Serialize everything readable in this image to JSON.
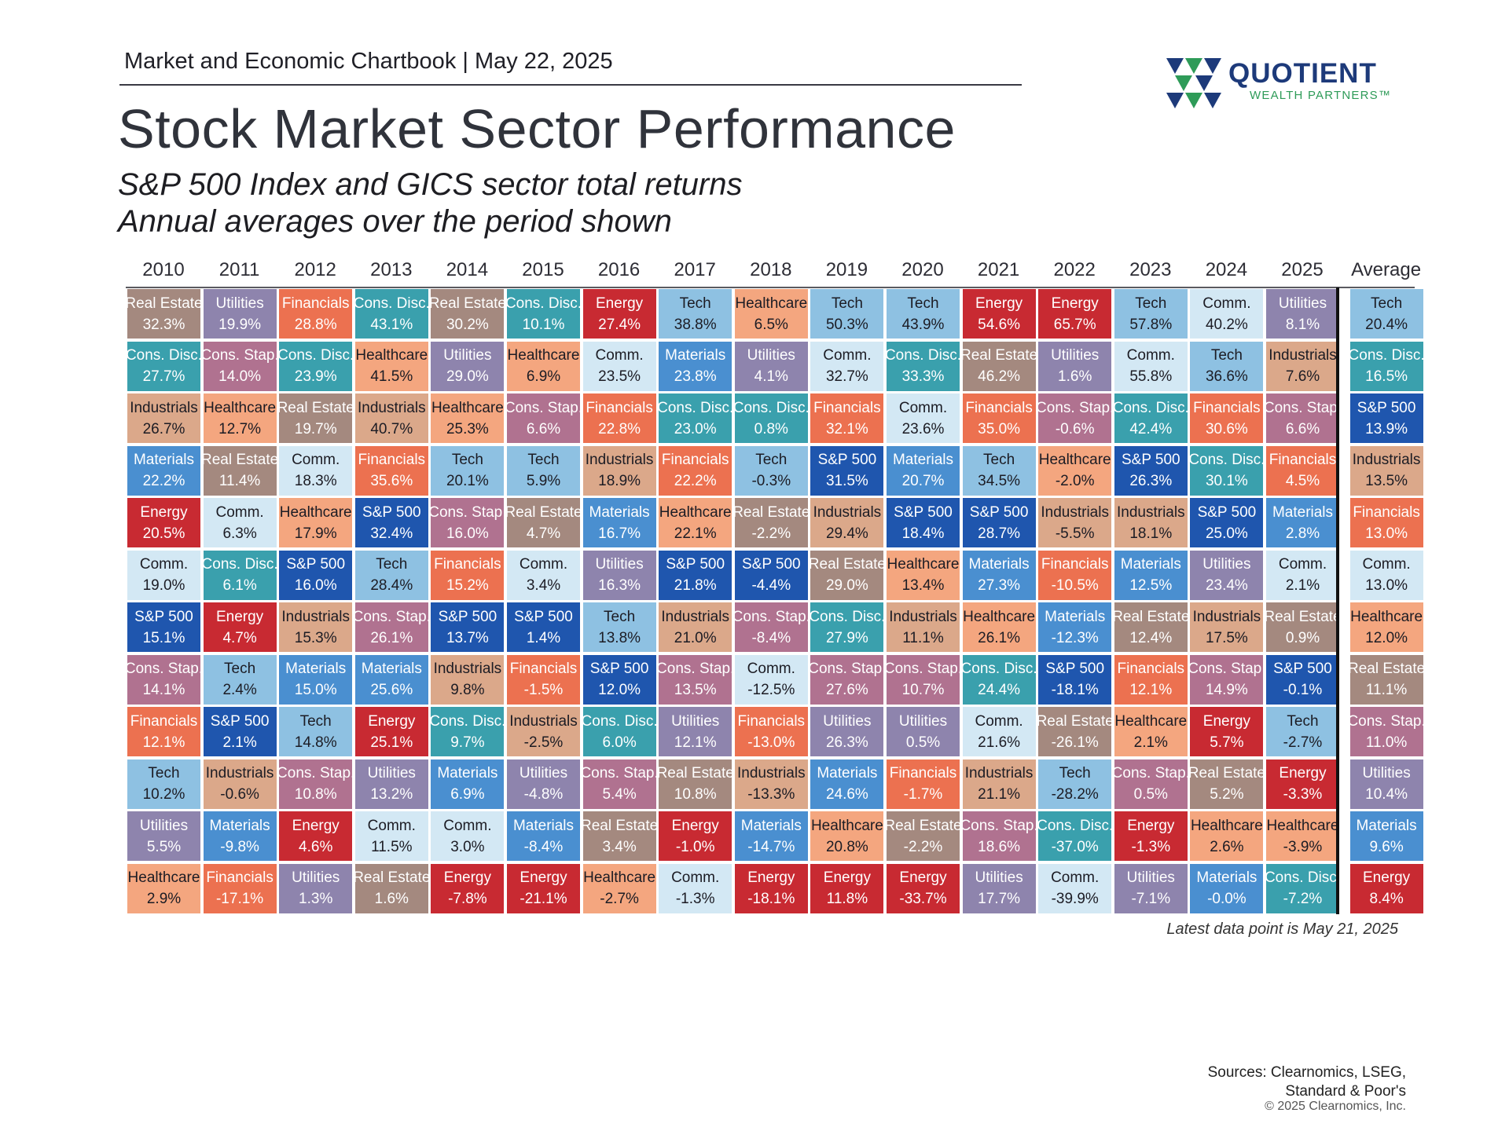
{
  "header": {
    "chartbook_label": "Market and Economic Chartbook | May 22, 2025",
    "title": "Stock Market Sector Performance",
    "subtitle_line1": "S&P 500 Index and GICS sector total returns",
    "subtitle_line2": "Annual averages over the period shown"
  },
  "logo": {
    "name": "QUOTIENT",
    "tagline": "WEALTH PARTNERS™",
    "colors": [
      "#1d3a7a",
      "#2e9b58"
    ]
  },
  "footer": {
    "note": "Latest data point is May 21, 2025",
    "sources_line1": "Sources: Clearnomics, LSEG,",
    "sources_line2": "Standard & Poor's",
    "copyright": "© 2025 Clearnomics, Inc."
  },
  "sector_colors": {
    "Real Estate": {
      "bg": "#a4897f",
      "fg": "#ffffff"
    },
    "Utilities": {
      "bg": "#8e84ad",
      "fg": "#ffffff"
    },
    "Financials": {
      "bg": "#ec7150",
      "fg": "#ffffff"
    },
    "Cons. Disc.": {
      "bg": "#3aa0ad",
      "fg": "#ffffff"
    },
    "Energy": {
      "bg": "#c82a32",
      "fg": "#ffffff"
    },
    "Tech": {
      "bg": "#8ec1e2",
      "fg": "#1c1c24"
    },
    "Healthcare": {
      "bg": "#f4a67f",
      "fg": "#1c1c24"
    },
    "Comm.": {
      "bg": "#d3e8f4",
      "fg": "#1c1c24"
    },
    "Cons. Stap.": {
      "bg": "#b07290",
      "fg": "#ffffff"
    },
    "Industrials": {
      "bg": "#dba88a",
      "fg": "#1c1c24"
    },
    "Materials": {
      "bg": "#4a8fd0",
      "fg": "#ffffff"
    },
    "S&P 500": {
      "bg": "#1f56ae",
      "fg": "#ffffff"
    }
  },
  "chart_data": {
    "type": "table",
    "title": "Stock Market Sector Performance",
    "columns": [
      "2010",
      "2011",
      "2012",
      "2013",
      "2014",
      "2015",
      "2016",
      "2017",
      "2018",
      "2019",
      "2020",
      "2021",
      "2022",
      "2023",
      "2024",
      "2025",
      "Average"
    ],
    "ranked_returns": [
      [
        {
          "sector": "Real Estate",
          "value": "32.3%"
        },
        {
          "sector": "Cons. Disc.",
          "value": "27.7%"
        },
        {
          "sector": "Industrials",
          "value": "26.7%"
        },
        {
          "sector": "Materials",
          "value": "22.2%"
        },
        {
          "sector": "Energy",
          "value": "20.5%"
        },
        {
          "sector": "Comm.",
          "value": "19.0%"
        },
        {
          "sector": "S&P 500",
          "value": "15.1%"
        },
        {
          "sector": "Cons. Stap.",
          "value": "14.1%"
        },
        {
          "sector": "Financials",
          "value": "12.1%"
        },
        {
          "sector": "Tech",
          "value": "10.2%"
        },
        {
          "sector": "Utilities",
          "value": "5.5%"
        },
        {
          "sector": "Healthcare",
          "value": "2.9%"
        }
      ],
      [
        {
          "sector": "Utilities",
          "value": "19.9%"
        },
        {
          "sector": "Cons. Stap.",
          "value": "14.0%"
        },
        {
          "sector": "Healthcare",
          "value": "12.7%"
        },
        {
          "sector": "Real Estate",
          "value": "11.4%"
        },
        {
          "sector": "Comm.",
          "value": "6.3%"
        },
        {
          "sector": "Cons. Disc.",
          "value": "6.1%"
        },
        {
          "sector": "Energy",
          "value": "4.7%"
        },
        {
          "sector": "Tech",
          "value": "2.4%"
        },
        {
          "sector": "S&P 500",
          "value": "2.1%"
        },
        {
          "sector": "Industrials",
          "value": "-0.6%"
        },
        {
          "sector": "Materials",
          "value": "-9.8%"
        },
        {
          "sector": "Financials",
          "value": "-17.1%"
        }
      ],
      [
        {
          "sector": "Financials",
          "value": "28.8%"
        },
        {
          "sector": "Cons. Disc.",
          "value": "23.9%"
        },
        {
          "sector": "Real Estate",
          "value": "19.7%"
        },
        {
          "sector": "Comm.",
          "value": "18.3%"
        },
        {
          "sector": "Healthcare",
          "value": "17.9%"
        },
        {
          "sector": "S&P 500",
          "value": "16.0%"
        },
        {
          "sector": "Industrials",
          "value": "15.3%"
        },
        {
          "sector": "Materials",
          "value": "15.0%"
        },
        {
          "sector": "Tech",
          "value": "14.8%"
        },
        {
          "sector": "Cons. Stap.",
          "value": "10.8%"
        },
        {
          "sector": "Energy",
          "value": "4.6%"
        },
        {
          "sector": "Utilities",
          "value": "1.3%"
        }
      ],
      [
        {
          "sector": "Cons. Disc.",
          "value": "43.1%"
        },
        {
          "sector": "Healthcare",
          "value": "41.5%"
        },
        {
          "sector": "Industrials",
          "value": "40.7%"
        },
        {
          "sector": "Financials",
          "value": "35.6%"
        },
        {
          "sector": "S&P 500",
          "value": "32.4%"
        },
        {
          "sector": "Tech",
          "value": "28.4%"
        },
        {
          "sector": "Cons. Stap.",
          "value": "26.1%"
        },
        {
          "sector": "Materials",
          "value": "25.6%"
        },
        {
          "sector": "Energy",
          "value": "25.1%"
        },
        {
          "sector": "Utilities",
          "value": "13.2%"
        },
        {
          "sector": "Comm.",
          "value": "11.5%"
        },
        {
          "sector": "Real Estate",
          "value": "1.6%"
        }
      ],
      [
        {
          "sector": "Real Estate",
          "value": "30.2%"
        },
        {
          "sector": "Utilities",
          "value": "29.0%"
        },
        {
          "sector": "Healthcare",
          "value": "25.3%"
        },
        {
          "sector": "Tech",
          "value": "20.1%"
        },
        {
          "sector": "Cons. Stap.",
          "value": "16.0%"
        },
        {
          "sector": "Financials",
          "value": "15.2%"
        },
        {
          "sector": "S&P 500",
          "value": "13.7%"
        },
        {
          "sector": "Industrials",
          "value": "9.8%"
        },
        {
          "sector": "Cons. Disc.",
          "value": "9.7%"
        },
        {
          "sector": "Materials",
          "value": "6.9%"
        },
        {
          "sector": "Comm.",
          "value": "3.0%"
        },
        {
          "sector": "Energy",
          "value": "-7.8%"
        }
      ],
      [
        {
          "sector": "Cons. Disc.",
          "value": "10.1%"
        },
        {
          "sector": "Healthcare",
          "value": "6.9%"
        },
        {
          "sector": "Cons. Stap.",
          "value": "6.6%"
        },
        {
          "sector": "Tech",
          "value": "5.9%"
        },
        {
          "sector": "Real Estate",
          "value": "4.7%"
        },
        {
          "sector": "Comm.",
          "value": "3.4%"
        },
        {
          "sector": "S&P 500",
          "value": "1.4%"
        },
        {
          "sector": "Financials",
          "value": "-1.5%"
        },
        {
          "sector": "Industrials",
          "value": "-2.5%"
        },
        {
          "sector": "Utilities",
          "value": "-4.8%"
        },
        {
          "sector": "Materials",
          "value": "-8.4%"
        },
        {
          "sector": "Energy",
          "value": "-21.1%"
        }
      ],
      [
        {
          "sector": "Energy",
          "value": "27.4%"
        },
        {
          "sector": "Comm.",
          "value": "23.5%"
        },
        {
          "sector": "Financials",
          "value": "22.8%"
        },
        {
          "sector": "Industrials",
          "value": "18.9%"
        },
        {
          "sector": "Materials",
          "value": "16.7%"
        },
        {
          "sector": "Utilities",
          "value": "16.3%"
        },
        {
          "sector": "Tech",
          "value": "13.8%"
        },
        {
          "sector": "S&P 500",
          "value": "12.0%"
        },
        {
          "sector": "Cons. Disc.",
          "value": "6.0%"
        },
        {
          "sector": "Cons. Stap.",
          "value": "5.4%"
        },
        {
          "sector": "Real Estate",
          "value": "3.4%"
        },
        {
          "sector": "Healthcare",
          "value": "-2.7%"
        }
      ],
      [
        {
          "sector": "Tech",
          "value": "38.8%"
        },
        {
          "sector": "Materials",
          "value": "23.8%"
        },
        {
          "sector": "Cons. Disc.",
          "value": "23.0%"
        },
        {
          "sector": "Financials",
          "value": "22.2%"
        },
        {
          "sector": "Healthcare",
          "value": "22.1%"
        },
        {
          "sector": "S&P 500",
          "value": "21.8%"
        },
        {
          "sector": "Industrials",
          "value": "21.0%"
        },
        {
          "sector": "Cons. Stap.",
          "value": "13.5%"
        },
        {
          "sector": "Utilities",
          "value": "12.1%"
        },
        {
          "sector": "Real Estate",
          "value": "10.8%"
        },
        {
          "sector": "Energy",
          "value": "-1.0%"
        },
        {
          "sector": "Comm.",
          "value": "-1.3%"
        }
      ],
      [
        {
          "sector": "Healthcare",
          "value": "6.5%"
        },
        {
          "sector": "Utilities",
          "value": "4.1%"
        },
        {
          "sector": "Cons. Disc.",
          "value": "0.8%"
        },
        {
          "sector": "Tech",
          "value": "-0.3%"
        },
        {
          "sector": "Real Estate",
          "value": "-2.2%"
        },
        {
          "sector": "S&P 500",
          "value": "-4.4%"
        },
        {
          "sector": "Cons. Stap.",
          "value": "-8.4%"
        },
        {
          "sector": "Comm.",
          "value": "-12.5%"
        },
        {
          "sector": "Financials",
          "value": "-13.0%"
        },
        {
          "sector": "Industrials",
          "value": "-13.3%"
        },
        {
          "sector": "Materials",
          "value": "-14.7%"
        },
        {
          "sector": "Energy",
          "value": "-18.1%"
        }
      ],
      [
        {
          "sector": "Tech",
          "value": "50.3%"
        },
        {
          "sector": "Comm.",
          "value": "32.7%"
        },
        {
          "sector": "Financials",
          "value": "32.1%"
        },
        {
          "sector": "S&P 500",
          "value": "31.5%"
        },
        {
          "sector": "Industrials",
          "value": "29.4%"
        },
        {
          "sector": "Real Estate",
          "value": "29.0%"
        },
        {
          "sector": "Cons. Disc.",
          "value": "27.9%"
        },
        {
          "sector": "Cons. Stap.",
          "value": "27.6%"
        },
        {
          "sector": "Utilities",
          "value": "26.3%"
        },
        {
          "sector": "Materials",
          "value": "24.6%"
        },
        {
          "sector": "Healthcare",
          "value": "20.8%"
        },
        {
          "sector": "Energy",
          "value": "11.8%"
        }
      ],
      [
        {
          "sector": "Tech",
          "value": "43.9%"
        },
        {
          "sector": "Cons. Disc.",
          "value": "33.3%"
        },
        {
          "sector": "Comm.",
          "value": "23.6%"
        },
        {
          "sector": "Materials",
          "value": "20.7%"
        },
        {
          "sector": "S&P 500",
          "value": "18.4%"
        },
        {
          "sector": "Healthcare",
          "value": "13.4%"
        },
        {
          "sector": "Industrials",
          "value": "11.1%"
        },
        {
          "sector": "Cons. Stap.",
          "value": "10.7%"
        },
        {
          "sector": "Utilities",
          "value": "0.5%"
        },
        {
          "sector": "Financials",
          "value": "-1.7%"
        },
        {
          "sector": "Real Estate",
          "value": "-2.2%"
        },
        {
          "sector": "Energy",
          "value": "-33.7%"
        }
      ],
      [
        {
          "sector": "Energy",
          "value": "54.6%"
        },
        {
          "sector": "Real Estate",
          "value": "46.2%"
        },
        {
          "sector": "Financials",
          "value": "35.0%"
        },
        {
          "sector": "Tech",
          "value": "34.5%"
        },
        {
          "sector": "S&P 500",
          "value": "28.7%"
        },
        {
          "sector": "Materials",
          "value": "27.3%"
        },
        {
          "sector": "Healthcare",
          "value": "26.1%"
        },
        {
          "sector": "Cons. Disc.",
          "value": "24.4%"
        },
        {
          "sector": "Comm.",
          "value": "21.6%"
        },
        {
          "sector": "Industrials",
          "value": "21.1%"
        },
        {
          "sector": "Cons. Stap.",
          "value": "18.6%"
        },
        {
          "sector": "Utilities",
          "value": "17.7%"
        }
      ],
      [
        {
          "sector": "Energy",
          "value": "65.7%"
        },
        {
          "sector": "Utilities",
          "value": "1.6%"
        },
        {
          "sector": "Cons. Stap.",
          "value": "-0.6%"
        },
        {
          "sector": "Healthcare",
          "value": "-2.0%"
        },
        {
          "sector": "Industrials",
          "value": "-5.5%"
        },
        {
          "sector": "Financials",
          "value": "-10.5%"
        },
        {
          "sector": "Materials",
          "value": "-12.3%"
        },
        {
          "sector": "S&P 500",
          "value": "-18.1%"
        },
        {
          "sector": "Real Estate",
          "value": "-26.1%"
        },
        {
          "sector": "Tech",
          "value": "-28.2%"
        },
        {
          "sector": "Cons. Disc.",
          "value": "-37.0%"
        },
        {
          "sector": "Comm.",
          "value": "-39.9%"
        }
      ],
      [
        {
          "sector": "Tech",
          "value": "57.8%"
        },
        {
          "sector": "Comm.",
          "value": "55.8%"
        },
        {
          "sector": "Cons. Disc.",
          "value": "42.4%"
        },
        {
          "sector": "S&P 500",
          "value": "26.3%"
        },
        {
          "sector": "Industrials",
          "value": "18.1%"
        },
        {
          "sector": "Materials",
          "value": "12.5%"
        },
        {
          "sector": "Real Estate",
          "value": "12.4%"
        },
        {
          "sector": "Financials",
          "value": "12.1%"
        },
        {
          "sector": "Healthcare",
          "value": "2.1%"
        },
        {
          "sector": "Cons. Stap.",
          "value": "0.5%"
        },
        {
          "sector": "Energy",
          "value": "-1.3%"
        },
        {
          "sector": "Utilities",
          "value": "-7.1%"
        }
      ],
      [
        {
          "sector": "Comm.",
          "value": "40.2%"
        },
        {
          "sector": "Tech",
          "value": "36.6%"
        },
        {
          "sector": "Financials",
          "value": "30.6%"
        },
        {
          "sector": "Cons. Disc.",
          "value": "30.1%"
        },
        {
          "sector": "S&P 500",
          "value": "25.0%"
        },
        {
          "sector": "Utilities",
          "value": "23.4%"
        },
        {
          "sector": "Industrials",
          "value": "17.5%"
        },
        {
          "sector": "Cons. Stap.",
          "value": "14.9%"
        },
        {
          "sector": "Energy",
          "value": "5.7%"
        },
        {
          "sector": "Real Estate",
          "value": "5.2%"
        },
        {
          "sector": "Healthcare",
          "value": "2.6%"
        },
        {
          "sector": "Materials",
          "value": "-0.0%"
        }
      ],
      [
        {
          "sector": "Utilities",
          "value": "8.1%"
        },
        {
          "sector": "Industrials",
          "value": "7.6%"
        },
        {
          "sector": "Cons. Stap.",
          "value": "6.6%"
        },
        {
          "sector": "Financials",
          "value": "4.5%"
        },
        {
          "sector": "Materials",
          "value": "2.8%"
        },
        {
          "sector": "Comm.",
          "value": "2.1%"
        },
        {
          "sector": "Real Estate",
          "value": "0.9%"
        },
        {
          "sector": "S&P 500",
          "value": "-0.1%"
        },
        {
          "sector": "Tech",
          "value": "-2.7%"
        },
        {
          "sector": "Energy",
          "value": "-3.3%"
        },
        {
          "sector": "Healthcare",
          "value": "-3.9%"
        },
        {
          "sector": "Cons. Disc.",
          "value": "-7.2%"
        }
      ],
      [
        {
          "sector": "Tech",
          "value": "20.4%"
        },
        {
          "sector": "Cons. Disc.",
          "value": "16.5%"
        },
        {
          "sector": "S&P 500",
          "value": "13.9%"
        },
        {
          "sector": "Industrials",
          "value": "13.5%"
        },
        {
          "sector": "Financials",
          "value": "13.0%"
        },
        {
          "sector": "Comm.",
          "value": "13.0%"
        },
        {
          "sector": "Healthcare",
          "value": "12.0%"
        },
        {
          "sector": "Real Estate",
          "value": "11.1%"
        },
        {
          "sector": "Cons. Stap.",
          "value": "11.0%"
        },
        {
          "sector": "Utilities",
          "value": "10.4%"
        },
        {
          "sector": "Materials",
          "value": "9.6%"
        },
        {
          "sector": "Energy",
          "value": "8.4%"
        }
      ]
    ]
  }
}
